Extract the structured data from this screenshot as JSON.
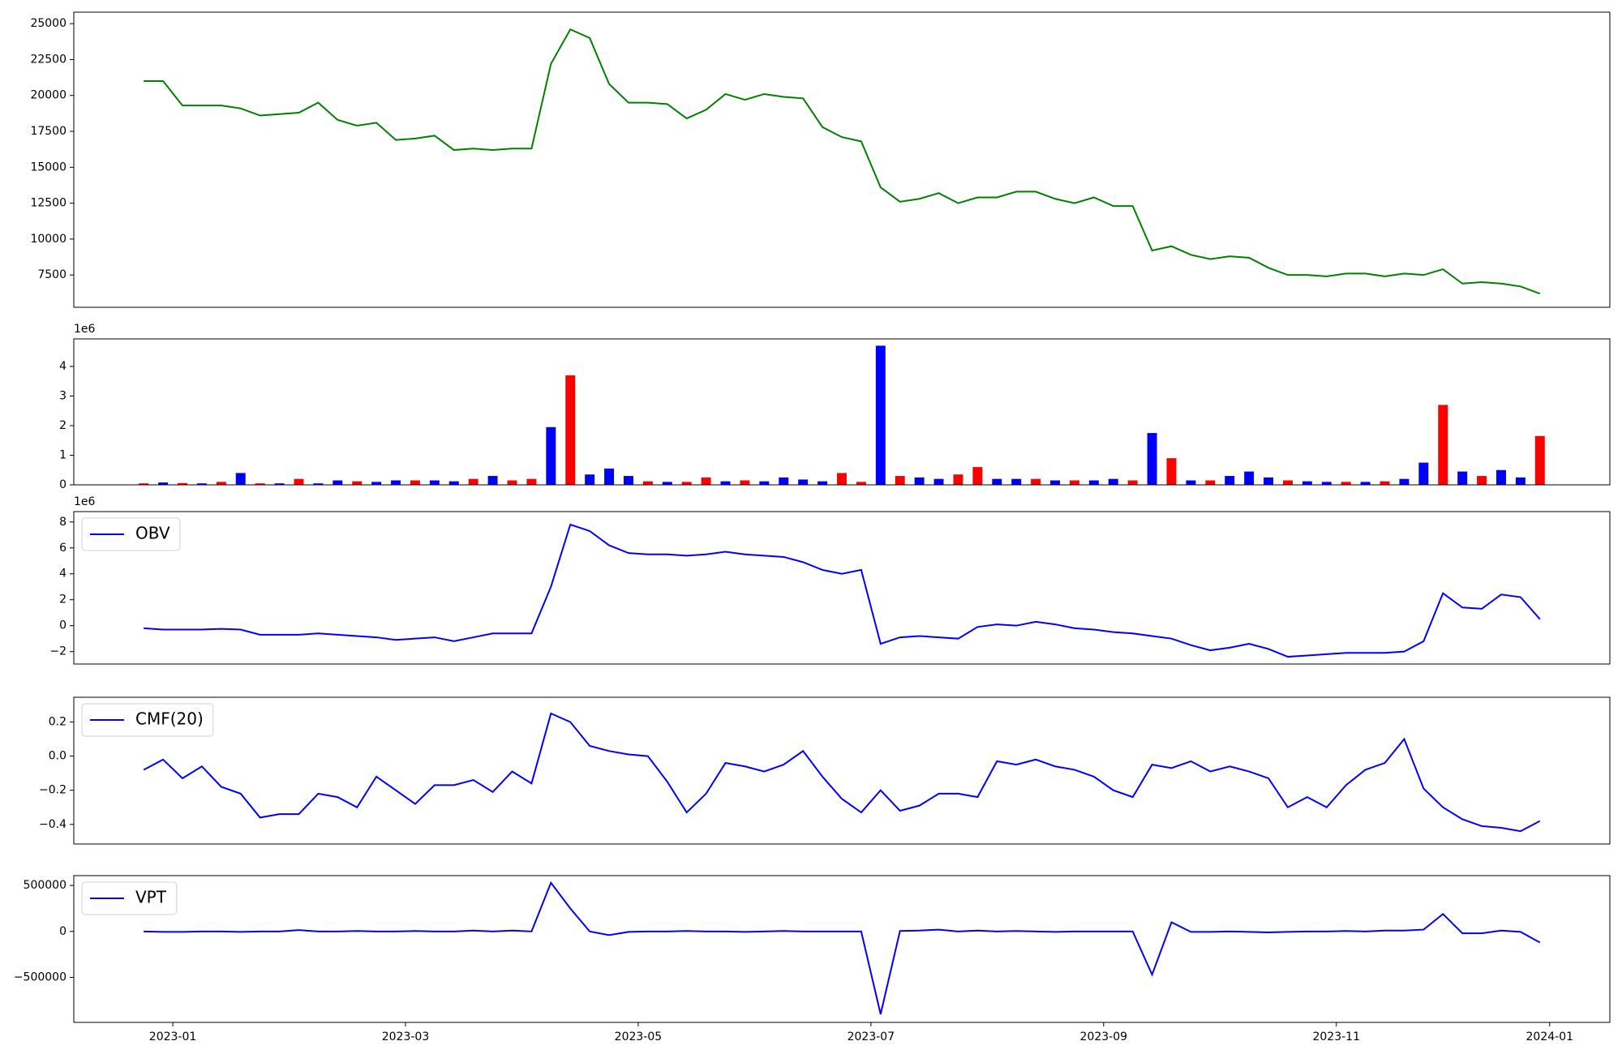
{
  "chart_data": [
    {
      "type": "line",
      "x": [
        "2022-12",
        "2022-12",
        "2023-01",
        "2023-01",
        "2023-01",
        "2023-01",
        "2023-01",
        "2023-01",
        "2023-02",
        "2023-02",
        "2023-02",
        "2023-02",
        "2023-02",
        "2023-02",
        "2023-03",
        "2023-03",
        "2023-03",
        "2023-03",
        "2023-03",
        "2023-03",
        "2023-04",
        "2023-04",
        "2023-04",
        "2023-04",
        "2023-04",
        "2023-04",
        "2023-05",
        "2023-05",
        "2023-05",
        "2023-05",
        "2023-05",
        "2023-05",
        "2023-06",
        "2023-06",
        "2023-06",
        "2023-06",
        "2023-06",
        "2023-06",
        "2023-07",
        "2023-07",
        "2023-07",
        "2023-07",
        "2023-07",
        "2023-07",
        "2023-08",
        "2023-08",
        "2023-08",
        "2023-08",
        "2023-08",
        "2023-08",
        "2023-09",
        "2023-09",
        "2023-09",
        "2023-09",
        "2023-09",
        "2023-09",
        "2023-10",
        "2023-10",
        "2023-10",
        "2023-10",
        "2023-10",
        "2023-10",
        "2023-11",
        "2023-11",
        "2023-11",
        "2023-11",
        "2023-11",
        "2023-11",
        "2023-12",
        "2023-12",
        "2023-12",
        "2023-12",
        "2023-12"
      ],
      "series": [
        {
          "color": "#008000",
          "values": [
            21000,
            21000,
            19300,
            19300,
            19300,
            19100,
            18600,
            18700,
            18800,
            19500,
            18300,
            17900,
            18100,
            16900,
            17000,
            17200,
            16200,
            16300,
            16200,
            16300,
            16300,
            22200,
            24600,
            24000,
            20800,
            19500,
            19500,
            19400,
            18400,
            19000,
            20100,
            19700,
            20100,
            19900,
            19800,
            17800,
            17100,
            16800,
            13600,
            12600,
            12800,
            13200,
            12500,
            12900,
            12900,
            13300,
            13300,
            12800,
            12500,
            12900,
            12300,
            12300,
            9200,
            9500,
            8900,
            8600,
            8800,
            8700,
            8000,
            7500,
            7500,
            7400,
            7600,
            7600,
            7400,
            7600,
            7500,
            7900,
            6900,
            7000,
            6900,
            6700,
            6200
          ]
        }
      ],
      "ylim": [
        5250,
        25800
      ],
      "yticks": [
        7500,
        10000,
        12500,
        15000,
        17500,
        20000,
        22500,
        25000
      ]
    },
    {
      "type": "bar",
      "x": [
        "2022-12",
        "2022-12",
        "2023-01",
        "2023-01",
        "2023-01",
        "2023-01",
        "2023-01",
        "2023-01",
        "2023-02",
        "2023-02",
        "2023-02",
        "2023-02",
        "2023-02",
        "2023-02",
        "2023-03",
        "2023-03",
        "2023-03",
        "2023-03",
        "2023-03",
        "2023-03",
        "2023-04",
        "2023-04",
        "2023-04",
        "2023-04",
        "2023-04",
        "2023-04",
        "2023-05",
        "2023-05",
        "2023-05",
        "2023-05",
        "2023-05",
        "2023-05",
        "2023-06",
        "2023-06",
        "2023-06",
        "2023-06",
        "2023-06",
        "2023-06",
        "2023-07",
        "2023-07",
        "2023-07",
        "2023-07",
        "2023-07",
        "2023-07",
        "2023-08",
        "2023-08",
        "2023-08",
        "2023-08",
        "2023-08",
        "2023-08",
        "2023-09",
        "2023-09",
        "2023-09",
        "2023-09",
        "2023-09",
        "2023-09",
        "2023-10",
        "2023-10",
        "2023-10",
        "2023-10",
        "2023-10",
        "2023-10",
        "2023-11",
        "2023-11",
        "2023-11",
        "2023-11",
        "2023-11",
        "2023-11",
        "2023-12",
        "2023-12",
        "2023-12",
        "2023-12",
        "2023-12"
      ],
      "values": [
        0.05,
        0.08,
        0.06,
        0.05,
        0.1,
        0.4,
        0.05,
        0.05,
        0.2,
        0.05,
        0.15,
        0.12,
        0.1,
        0.15,
        0.15,
        0.15,
        0.12,
        0.2,
        0.3,
        0.15,
        0.2,
        1.95,
        3.7,
        0.35,
        0.55,
        0.3,
        0.12,
        0.1,
        0.1,
        0.25,
        0.12,
        0.15,
        0.12,
        0.25,
        0.18,
        0.12,
        0.4,
        0.1,
        4.7,
        0.3,
        0.25,
        0.2,
        0.35,
        0.6,
        0.2,
        0.2,
        0.2,
        0.15,
        0.15,
        0.15,
        0.2,
        0.15,
        1.75,
        0.9,
        0.15,
        0.15,
        0.3,
        0.45,
        0.25,
        0.15,
        0.12,
        0.1,
        0.1,
        0.1,
        0.12,
        0.2,
        0.75,
        2.7,
        0.45,
        0.3,
        0.5,
        0.25,
        1.65
      ],
      "colors": [
        "#ff0000",
        "#0000ff",
        "#ff0000",
        "#0000ff",
        "#ff0000",
        "#0000ff",
        "#ff0000",
        "#0000ff",
        "#ff0000",
        "#0000ff",
        "#0000ff",
        "#ff0000",
        "#0000ff",
        "#0000ff",
        "#ff0000",
        "#0000ff",
        "#0000ff",
        "#ff0000",
        "#0000ff",
        "#ff0000",
        "#ff0000",
        "#0000ff",
        "#ff0000",
        "#0000ff",
        "#0000ff",
        "#0000ff",
        "#ff0000",
        "#0000ff",
        "#ff0000",
        "#ff0000",
        "#0000ff",
        "#ff0000",
        "#0000ff",
        "#0000ff",
        "#0000ff",
        "#0000ff",
        "#ff0000",
        "#ff0000",
        "#0000ff",
        "#ff0000",
        "#0000ff",
        "#0000ff",
        "#ff0000",
        "#ff0000",
        "#0000ff",
        "#0000ff",
        "#ff0000",
        "#0000ff",
        "#ff0000",
        "#0000ff",
        "#0000ff",
        "#ff0000",
        "#0000ff",
        "#ff0000",
        "#0000ff",
        "#ff0000",
        "#0000ff",
        "#0000ff",
        "#0000ff",
        "#ff0000",
        "#0000ff",
        "#0000ff",
        "#ff0000",
        "#0000ff",
        "#ff0000",
        "#0000ff",
        "#0000ff",
        "#ff0000",
        "#0000ff",
        "#ff0000",
        "#0000ff",
        "#0000ff",
        "#ff0000"
      ],
      "y_offset_label": "1e6",
      "ylim": [
        0,
        4.93
      ],
      "yticks": [
        0,
        1,
        2,
        3,
        4
      ]
    },
    {
      "type": "line",
      "x": [
        "2022-12",
        "2022-12",
        "2023-01",
        "2023-01",
        "2023-01",
        "2023-01",
        "2023-01",
        "2023-01",
        "2023-02",
        "2023-02",
        "2023-02",
        "2023-02",
        "2023-02",
        "2023-02",
        "2023-03",
        "2023-03",
        "2023-03",
        "2023-03",
        "2023-03",
        "2023-03",
        "2023-04",
        "2023-04",
        "2023-04",
        "2023-04",
        "2023-04",
        "2023-04",
        "2023-05",
        "2023-05",
        "2023-05",
        "2023-05",
        "2023-05",
        "2023-05",
        "2023-06",
        "2023-06",
        "2023-06",
        "2023-06",
        "2023-06",
        "2023-06",
        "2023-07",
        "2023-07",
        "2023-07",
        "2023-07",
        "2023-07",
        "2023-07",
        "2023-08",
        "2023-08",
        "2023-08",
        "2023-08",
        "2023-08",
        "2023-08",
        "2023-09",
        "2023-09",
        "2023-09",
        "2023-09",
        "2023-09",
        "2023-09",
        "2023-10",
        "2023-10",
        "2023-10",
        "2023-10",
        "2023-10",
        "2023-10",
        "2023-11",
        "2023-11",
        "2023-11",
        "2023-11",
        "2023-11",
        "2023-11",
        "2023-12",
        "2023-12",
        "2023-12",
        "2023-12",
        "2023-12"
      ],
      "series": [
        {
          "name": "OBV",
          "color": "#0000ff",
          "values": [
            -0.2,
            -0.3,
            -0.3,
            -0.3,
            -0.25,
            -0.3,
            -0.7,
            -0.7,
            -0.7,
            -0.6,
            -0.7,
            -0.8,
            -0.9,
            -1.1,
            -1.0,
            -0.9,
            -1.2,
            -0.9,
            -0.6,
            -0.6,
            -0.6,
            3.0,
            7.8,
            7.3,
            6.2,
            5.6,
            5.5,
            5.5,
            5.4,
            5.5,
            5.7,
            5.5,
            5.4,
            5.3,
            4.9,
            4.3,
            4.0,
            4.3,
            -1.4,
            -0.9,
            -0.8,
            -0.9,
            -1.0,
            -0.1,
            0.1,
            0.0,
            0.3,
            0.1,
            -0.2,
            -0.3,
            -0.5,
            -0.6,
            -0.8,
            -1.0,
            -1.5,
            -1.9,
            -1.7,
            -1.4,
            -1.8,
            -2.4,
            -2.3,
            -2.2,
            -2.1,
            -2.1,
            -2.1,
            -2.0,
            -1.2,
            2.5,
            1.4,
            1.3,
            2.4,
            2.2,
            0.5
          ]
        }
      ],
      "y_offset_label": "1e6",
      "ylim": [
        -2.96,
        8.8
      ],
      "yticks": [
        {
          "value": -2,
          "label": "−2"
        },
        0,
        2,
        4,
        6,
        8
      ],
      "legend": "upper left"
    },
    {
      "type": "line",
      "x": [
        "2022-12",
        "2022-12",
        "2023-01",
        "2023-01",
        "2023-01",
        "2023-01",
        "2023-01",
        "2023-01",
        "2023-02",
        "2023-02",
        "2023-02",
        "2023-02",
        "2023-02",
        "2023-02",
        "2023-03",
        "2023-03",
        "2023-03",
        "2023-03",
        "2023-03",
        "2023-03",
        "2023-04",
        "2023-04",
        "2023-04",
        "2023-04",
        "2023-04",
        "2023-04",
        "2023-05",
        "2023-05",
        "2023-05",
        "2023-05",
        "2023-05",
        "2023-05",
        "2023-06",
        "2023-06",
        "2023-06",
        "2023-06",
        "2023-06",
        "2023-06",
        "2023-07",
        "2023-07",
        "2023-07",
        "2023-07",
        "2023-07",
        "2023-07",
        "2023-08",
        "2023-08",
        "2023-08",
        "2023-08",
        "2023-08",
        "2023-08",
        "2023-09",
        "2023-09",
        "2023-09",
        "2023-09",
        "2023-09",
        "2023-09",
        "2023-10",
        "2023-10",
        "2023-10",
        "2023-10",
        "2023-10",
        "2023-10",
        "2023-11",
        "2023-11",
        "2023-11",
        "2023-11",
        "2023-11",
        "2023-11",
        "2023-12",
        "2023-12",
        "2023-12",
        "2023-12",
        "2023-12"
      ],
      "series": [
        {
          "name": "CMF(20)",
          "color": "#0000ff",
          "values": [
            -0.08,
            -0.02,
            -0.13,
            -0.06,
            -0.18,
            -0.22,
            -0.36,
            -0.34,
            -0.34,
            -0.22,
            -0.24,
            -0.3,
            -0.12,
            -0.2,
            -0.28,
            -0.17,
            -0.17,
            -0.14,
            -0.21,
            -0.09,
            -0.16,
            0.25,
            0.2,
            0.06,
            0.03,
            0.01,
            0.0,
            -0.15,
            -0.33,
            -0.22,
            -0.04,
            -0.06,
            -0.09,
            -0.05,
            0.03,
            -0.12,
            -0.25,
            -0.33,
            -0.2,
            -0.32,
            -0.29,
            -0.22,
            -0.22,
            -0.24,
            -0.03,
            -0.05,
            -0.02,
            -0.06,
            -0.08,
            -0.12,
            -0.2,
            -0.24,
            -0.05,
            -0.07,
            -0.03,
            -0.09,
            -0.06,
            -0.09,
            -0.13,
            -0.3,
            -0.24,
            -0.3,
            -0.17,
            -0.08,
            -0.04,
            0.1,
            -0.19,
            -0.3,
            -0.37,
            -0.41,
            -0.42,
            -0.44,
            -0.38
          ]
        }
      ],
      "ylim": [
        -0.515,
        0.345
      ],
      "yticks": [
        {
          "value": -0.4,
          "label": "−0.4"
        },
        {
          "value": -0.2,
          "label": "−0.2"
        },
        {
          "value": 0,
          "label": "0.0"
        },
        0.2
      ],
      "legend": "upper left"
    },
    {
      "type": "line",
      "x": [
        "2022-12",
        "2022-12",
        "2023-01",
        "2023-01",
        "2023-01",
        "2023-01",
        "2023-01",
        "2023-01",
        "2023-02",
        "2023-02",
        "2023-02",
        "2023-02",
        "2023-02",
        "2023-02",
        "2023-03",
        "2023-03",
        "2023-03",
        "2023-03",
        "2023-03",
        "2023-03",
        "2023-04",
        "2023-04",
        "2023-04",
        "2023-04",
        "2023-04",
        "2023-04",
        "2023-05",
        "2023-05",
        "2023-05",
        "2023-05",
        "2023-05",
        "2023-05",
        "2023-06",
        "2023-06",
        "2023-06",
        "2023-06",
        "2023-06",
        "2023-06",
        "2023-07",
        "2023-07",
        "2023-07",
        "2023-07",
        "2023-07",
        "2023-07",
        "2023-08",
        "2023-08",
        "2023-08",
        "2023-08",
        "2023-08",
        "2023-08",
        "2023-09",
        "2023-09",
        "2023-09",
        "2023-09",
        "2023-09",
        "2023-09",
        "2023-10",
        "2023-10",
        "2023-10",
        "2023-10",
        "2023-10",
        "2023-10",
        "2023-11",
        "2023-11",
        "2023-11",
        "2023-11",
        "2023-11",
        "2023-11",
        "2023-12",
        "2023-12",
        "2023-12",
        "2023-12",
        "2023-12"
      ],
      "series": [
        {
          "name": "VPT",
          "color": "#0000ff",
          "values": [
            0,
            -5000,
            -5000,
            0,
            0,
            -5000,
            0,
            0,
            15000,
            0,
            0,
            5000,
            0,
            0,
            5000,
            0,
            0,
            10000,
            0,
            10000,
            0,
            530000,
            250000,
            0,
            -40000,
            -5000,
            0,
            0,
            5000,
            0,
            0,
            -5000,
            0,
            5000,
            0,
            0,
            0,
            0,
            -900000,
            5000,
            10000,
            20000,
            0,
            10000,
            0,
            5000,
            0,
            -5000,
            0,
            0,
            0,
            0,
            -470000,
            100000,
            -5000,
            -5000,
            0,
            -5000,
            -10000,
            -5000,
            0,
            0,
            5000,
            0,
            10000,
            10000,
            20000,
            190000,
            -20000,
            -20000,
            10000,
            -5000,
            -120000
          ]
        }
      ],
      "ylim": [
        -989000,
        607000
      ],
      "yticks": [
        {
          "value": -500000,
          "label": "−500000"
        },
        0,
        500000
      ],
      "legend": "upper left",
      "xticks": [
        "2023-01",
        "2023-03",
        "2023-05",
        "2023-07",
        "2023-09",
        "2023-11",
        "2024-01"
      ]
    }
  ]
}
